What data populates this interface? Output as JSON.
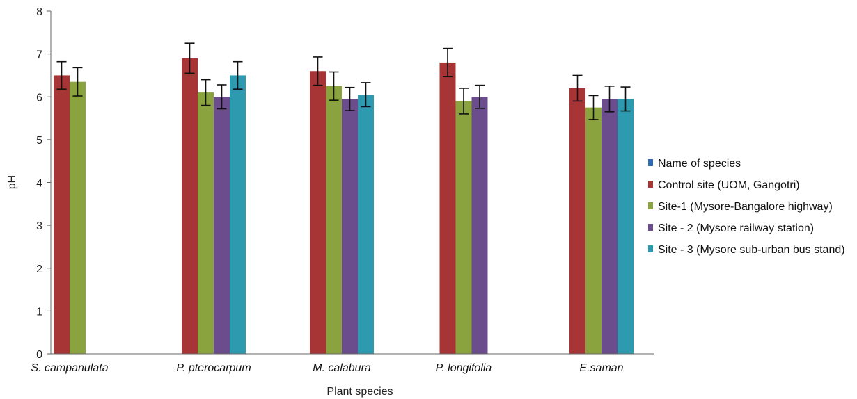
{
  "chart_data": {
    "type": "bar",
    "xlabel": "Plant species",
    "ylabel": "pH",
    "ylim": [
      0,
      8
    ],
    "yticks": [
      "0",
      "1",
      "2",
      "3",
      "4",
      "5",
      "6",
      "7",
      "8"
    ],
    "grid": false,
    "legend_position": "right",
    "categories": [
      "S. campanulata",
      "P. pterocarpum",
      "M. calabura",
      "P. longifolia",
      "E.saman"
    ],
    "legend": [
      {
        "name": "Name of species",
        "color": "#2E6DB4"
      },
      {
        "name": "Control site (UOM, Gangotri)",
        "color": "#A83535"
      },
      {
        "name": "Site-1 (Mysore-Bangalore highway)",
        "color": "#8AA33F"
      },
      {
        "name": "Site - 2 (Mysore railway station)",
        "color": "#6B4C8C"
      },
      {
        "name": "Site - 3 (Mysore sub-urban bus stand)",
        "color": "#2E9AB0"
      }
    ],
    "series": [
      {
        "name": "Control site (UOM, Gangotri)",
        "color": "#A83535",
        "values": [
          6.5,
          6.9,
          6.6,
          6.8,
          6.2
        ],
        "errors": [
          0.32,
          0.35,
          0.33,
          0.33,
          0.3
        ]
      },
      {
        "name": "Site-1 (Mysore-Bangalore highway)",
        "color": "#8AA33F",
        "values": [
          6.35,
          6.1,
          6.25,
          5.9,
          5.75
        ],
        "errors": [
          0.33,
          0.3,
          0.33,
          0.3,
          0.28
        ]
      },
      {
        "name": "Site - 2 (Mysore railway station)",
        "color": "#6B4C8C",
        "values": [
          null,
          6.0,
          5.95,
          6.0,
          5.95
        ],
        "errors": [
          null,
          0.28,
          0.27,
          0.27,
          0.3
        ]
      },
      {
        "name": "Site - 3 (Mysore sub-urban bus stand)",
        "color": "#2E9AB0",
        "values": [
          null,
          6.5,
          6.05,
          null,
          5.95
        ],
        "errors": [
          null,
          0.32,
          0.28,
          null,
          0.28
        ]
      }
    ]
  }
}
